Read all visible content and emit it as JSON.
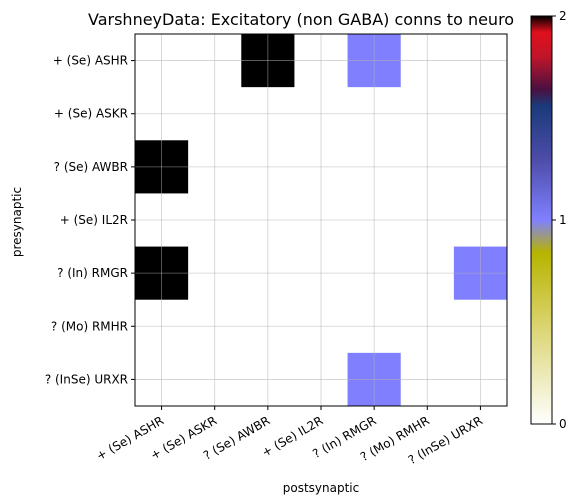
{
  "chart_data": {
    "type": "heatmap",
    "title": "VarshneyData: Excitatory (non GABA) conns to neuro",
    "xlabel": "postsynaptic",
    "ylabel": "presynaptic",
    "x_categories": [
      "+ (Se) ASHR",
      "+ (Se) ASKR",
      "? (Se) AWBR",
      "+ (Se) IL2R",
      "? (In) RMGR",
      "? (Mo) RMHR",
      "? (InSe) URXR"
    ],
    "y_categories": [
      "+ (Se) ASHR",
      "+ (Se) ASKR",
      "? (Se) AWBR",
      "+ (Se) IL2R",
      "? (In) RMGR",
      "? (Mo) RMHR",
      "? (InSe) URXR"
    ],
    "values": [
      [
        0,
        0,
        2,
        0,
        1,
        0,
        0
      ],
      [
        0,
        0,
        0,
        0,
        0,
        0,
        0
      ],
      [
        2,
        0,
        0,
        0,
        0,
        0,
        0
      ],
      [
        0,
        0,
        0,
        0,
        0,
        0,
        0
      ],
      [
        2,
        0,
        0,
        0,
        0,
        0,
        1
      ],
      [
        0,
        0,
        0,
        0,
        0,
        0,
        0
      ],
      [
        0,
        0,
        0,
        0,
        1,
        0,
        0
      ]
    ],
    "colorbar": {
      "range": [
        0,
        2
      ],
      "ticks": [
        0,
        1,
        2
      ],
      "tick_labels": [
        "0",
        "1",
        "2"
      ],
      "colormap": "gist_stern_r-like",
      "stops": [
        {
          "v": 0.0,
          "color": "#ffffff"
        },
        {
          "v": 0.25,
          "color": "#d9d26a"
        },
        {
          "v": 0.42,
          "color": "#b7b400"
        },
        {
          "v": 0.5,
          "color": "#8080ff"
        },
        {
          "v": 0.65,
          "color": "#4c4ca8"
        },
        {
          "v": 0.78,
          "color": "#1a3a7a"
        },
        {
          "v": 0.82,
          "color": "#4a1040"
        },
        {
          "v": 0.9,
          "color": "#c0152a"
        },
        {
          "v": 0.96,
          "color": "#e0101c"
        },
        {
          "v": 1.0,
          "color": "#000000"
        }
      ]
    },
    "cell_colors": {
      "0": "#ffffff",
      "1": "#8080ff",
      "2": "#000000"
    },
    "grid": true
  }
}
